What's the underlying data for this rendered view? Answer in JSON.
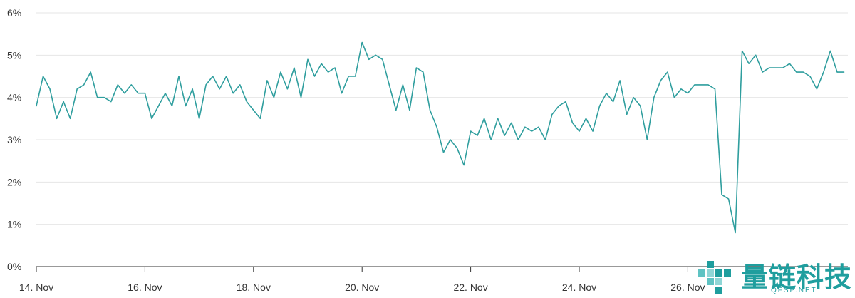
{
  "chart_data": {
    "type": "line",
    "title": "",
    "xlabel": "",
    "ylabel": "",
    "x_range": [
      "2023-11-14",
      "2023-11-28"
    ],
    "ylim": [
      0,
      6
    ],
    "y_unit": "%",
    "grid": true,
    "line_color": "#2f9e9e",
    "x_tick_labels": [
      "14. Nov",
      "16. Nov",
      "18. Nov",
      "20. Nov",
      "22. Nov",
      "24. Nov",
      "26. Nov"
    ],
    "y_tick_labels": [
      "0%",
      "1%",
      "2%",
      "3%",
      "4%",
      "5%",
      "6%"
    ],
    "series": [
      {
        "values": [
          [
            "14. Nov 00:00",
            3.8
          ],
          [
            "14. Nov 03:00",
            4.5
          ],
          [
            "14. Nov 06:00",
            4.2
          ],
          [
            "14. Nov 09:00",
            3.5
          ],
          [
            "14. Nov 12:00",
            3.9
          ],
          [
            "14. Nov 15:00",
            3.5
          ],
          [
            "14. Nov 18:00",
            4.2
          ],
          [
            "14. Nov 21:00",
            4.3
          ],
          [
            "15. Nov 00:00",
            4.6
          ],
          [
            "15. Nov 03:00",
            4.0
          ],
          [
            "15. Nov 06:00",
            4.0
          ],
          [
            "15. Nov 09:00",
            3.9
          ],
          [
            "15. Nov 12:00",
            4.3
          ],
          [
            "15. Nov 15:00",
            4.1
          ],
          [
            "15. Nov 18:00",
            4.3
          ],
          [
            "15. Nov 21:00",
            4.1
          ],
          [
            "16. Nov 00:00",
            4.1
          ],
          [
            "16. Nov 03:00",
            3.5
          ],
          [
            "16. Nov 06:00",
            3.8
          ],
          [
            "16. Nov 09:00",
            4.1
          ],
          [
            "16. Nov 12:00",
            3.8
          ],
          [
            "16. Nov 15:00",
            4.5
          ],
          [
            "16. Nov 18:00",
            3.8
          ],
          [
            "16. Nov 21:00",
            4.2
          ],
          [
            "17. Nov 00:00",
            3.5
          ],
          [
            "17. Nov 03:00",
            4.3
          ],
          [
            "17. Nov 06:00",
            4.5
          ],
          [
            "17. Nov 09:00",
            4.2
          ],
          [
            "17. Nov 12:00",
            4.5
          ],
          [
            "17. Nov 15:00",
            4.1
          ],
          [
            "17. Nov 18:00",
            4.3
          ],
          [
            "17. Nov 21:00",
            3.9
          ],
          [
            "18. Nov 00:00",
            3.7
          ],
          [
            "18. Nov 03:00",
            3.5
          ],
          [
            "18. Nov 06:00",
            4.4
          ],
          [
            "18. Nov 09:00",
            4.0
          ],
          [
            "18. Nov 12:00",
            4.6
          ],
          [
            "18. Nov 15:00",
            4.2
          ],
          [
            "18. Nov 18:00",
            4.7
          ],
          [
            "18. Nov 21:00",
            4.0
          ],
          [
            "19. Nov 00:00",
            4.9
          ],
          [
            "19. Nov 03:00",
            4.5
          ],
          [
            "19. Nov 06:00",
            4.8
          ],
          [
            "19. Nov 09:00",
            4.6
          ],
          [
            "19. Nov 12:00",
            4.7
          ],
          [
            "19. Nov 15:00",
            4.1
          ],
          [
            "19. Nov 18:00",
            4.5
          ],
          [
            "19. Nov 21:00",
            4.5
          ],
          [
            "20. Nov 00:00",
            5.3
          ],
          [
            "20. Nov 03:00",
            4.9
          ],
          [
            "20. Nov 06:00",
            5.0
          ],
          [
            "20. Nov 09:00",
            4.9
          ],
          [
            "20. Nov 12:00",
            4.3
          ],
          [
            "20. Nov 15:00",
            3.7
          ],
          [
            "20. Nov 18:00",
            4.3
          ],
          [
            "20. Nov 21:00",
            3.7
          ],
          [
            "21. Nov 00:00",
            4.7
          ],
          [
            "21. Nov 03:00",
            4.6
          ],
          [
            "21. Nov 06:00",
            3.7
          ],
          [
            "21. Nov 09:00",
            3.3
          ],
          [
            "21. Nov 12:00",
            2.7
          ],
          [
            "21. Nov 15:00",
            3.0
          ],
          [
            "21. Nov 18:00",
            2.8
          ],
          [
            "21. Nov 21:00",
            2.4
          ],
          [
            "22. Nov 00:00",
            3.2
          ],
          [
            "22. Nov 03:00",
            3.1
          ],
          [
            "22. Nov 06:00",
            3.5
          ],
          [
            "22. Nov 09:00",
            3.0
          ],
          [
            "22. Nov 12:00",
            3.5
          ],
          [
            "22. Nov 15:00",
            3.1
          ],
          [
            "22. Nov 18:00",
            3.4
          ],
          [
            "22. Nov 21:00",
            3.0
          ],
          [
            "23. Nov 00:00",
            3.3
          ],
          [
            "23. Nov 03:00",
            3.2
          ],
          [
            "23. Nov 06:00",
            3.3
          ],
          [
            "23. Nov 09:00",
            3.0
          ],
          [
            "23. Nov 12:00",
            3.6
          ],
          [
            "23. Nov 15:00",
            3.8
          ],
          [
            "23. Nov 18:00",
            3.9
          ],
          [
            "23. Nov 21:00",
            3.4
          ],
          [
            "24. Nov 00:00",
            3.2
          ],
          [
            "24. Nov 03:00",
            3.5
          ],
          [
            "24. Nov 06:00",
            3.2
          ],
          [
            "24. Nov 09:00",
            3.8
          ],
          [
            "24. Nov 12:00",
            4.1
          ],
          [
            "24. Nov 15:00",
            3.9
          ],
          [
            "24. Nov 18:00",
            4.4
          ],
          [
            "24. Nov 21:00",
            3.6
          ],
          [
            "25. Nov 00:00",
            4.0
          ],
          [
            "25. Nov 03:00",
            3.8
          ],
          [
            "25. Nov 06:00",
            3.0
          ],
          [
            "25. Nov 09:00",
            4.0
          ],
          [
            "25. Nov 12:00",
            4.4
          ],
          [
            "25. Nov 15:00",
            4.6
          ],
          [
            "25. Nov 18:00",
            4.0
          ],
          [
            "25. Nov 21:00",
            4.2
          ],
          [
            "26. Nov 00:00",
            4.1
          ],
          [
            "26. Nov 03:00",
            4.3
          ],
          [
            "26. Nov 06:00",
            4.3
          ],
          [
            "26. Nov 09:00",
            4.3
          ],
          [
            "26. Nov 12:00",
            4.2
          ],
          [
            "26. Nov 15:00",
            1.7
          ],
          [
            "26. Nov 18:00",
            1.6
          ],
          [
            "26. Nov 21:00",
            0.8
          ],
          [
            "27. Nov 00:00",
            5.1
          ],
          [
            "27. Nov 03:00",
            4.8
          ],
          [
            "27. Nov 06:00",
            5.0
          ],
          [
            "27. Nov 09:00",
            4.6
          ],
          [
            "27. Nov 12:00",
            4.7
          ],
          [
            "27. Nov 15:00",
            4.7
          ],
          [
            "27. Nov 18:00",
            4.7
          ],
          [
            "27. Nov 21:00",
            4.8
          ],
          [
            "28. Nov 00:00",
            4.6
          ],
          [
            "28. Nov 03:00",
            4.6
          ],
          [
            "28. Nov 06:00",
            4.5
          ],
          [
            "28. Nov 09:00",
            4.2
          ],
          [
            "28. Nov 12:00",
            4.6
          ],
          [
            "28. Nov 15:00",
            5.1
          ],
          [
            "28. Nov 18:00",
            4.6
          ],
          [
            "28. Nov 21:00",
            4.6
          ]
        ]
      }
    ]
  },
  "watermark": {
    "text": "量链科技",
    "subtext": "QFSP.NET"
  }
}
